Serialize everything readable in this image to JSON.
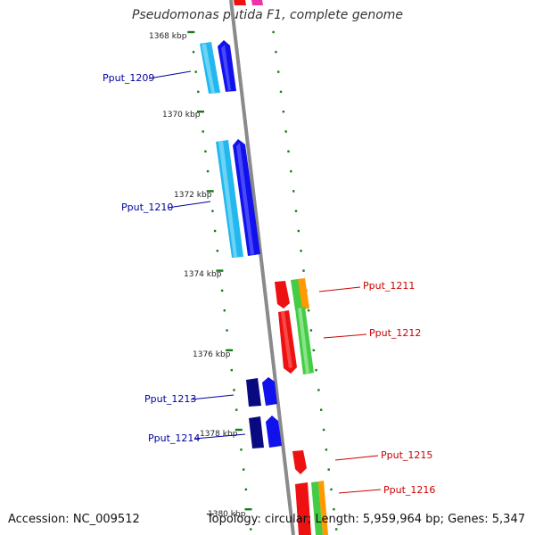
{
  "title": "Pseudomonas putida F1, complete genome",
  "accession": "Accession: NC_009512",
  "summary": "Topology: circular; Length: 5,959,964 bp; Genes: 5,347",
  "kbp_labels": [
    "1368 kbp",
    "1370 kbp",
    "1372 kbp",
    "1374 kbp",
    "1376 kbp",
    "1378 kbp",
    "1380 kbp"
  ],
  "genes": [
    {
      "name": "Pput_1209",
      "strand": "minus",
      "color": "#0000a0"
    },
    {
      "name": "Pput_1210",
      "strand": "minus",
      "color": "#0000a0"
    },
    {
      "name": "Pput_1211",
      "strand": "plus",
      "color": "#cc0000"
    },
    {
      "name": "Pput_1212",
      "strand": "plus",
      "color": "#cc0000"
    },
    {
      "name": "Pput_1213",
      "strand": "minus",
      "color": "#0000a0"
    },
    {
      "name": "Pput_1214",
      "strand": "minus",
      "color": "#0000a0"
    },
    {
      "name": "Pput_1215",
      "strand": "plus",
      "color": "#cc0000"
    },
    {
      "name": "Pput_1216",
      "strand": "plus",
      "color": "#cc0000"
    }
  ],
  "colors": {
    "backbone": "#8a8a8a",
    "tick": "#1a7a1a",
    "cyan": "#22b8ee",
    "blue": "#1111ee",
    "navy": "#0a0a80",
    "red": "#ee1111",
    "green": "#44cc44",
    "orange": "#ff9900",
    "magenta": "#ee33aa",
    "minus_label": "#0000a0",
    "plus_label": "#cc0000"
  }
}
